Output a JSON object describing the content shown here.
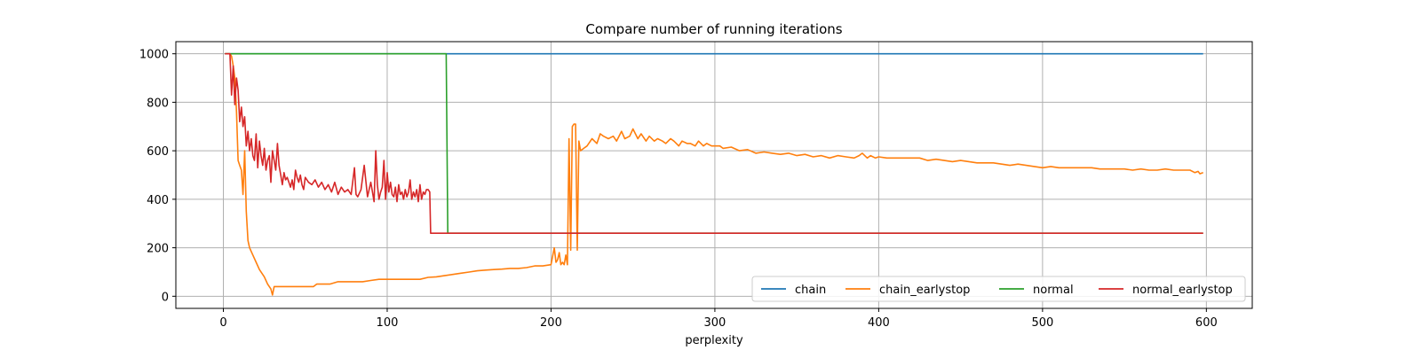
{
  "chart_data": {
    "type": "line",
    "title": "Compare number of running iterations",
    "xlabel": "perplexity",
    "ylabel": "",
    "xlim": [
      -29,
      628
    ],
    "ylim": [
      -50,
      1050
    ],
    "x_ticks": [
      0,
      100,
      200,
      300,
      400,
      500,
      600
    ],
    "y_ticks": [
      0,
      200,
      400,
      600,
      800,
      1000
    ],
    "grid": true,
    "legend_position": "lower-right",
    "legend_columns": 4,
    "series": [
      {
        "name": "chain",
        "color": "#1f77b4",
        "x": [
          1,
          598
        ],
        "y": [
          1000,
          1000
        ]
      },
      {
        "name": "chain_earlystop",
        "color": "#ff7f0e",
        "x": [
          1,
          4,
          5,
          6,
          7,
          8,
          9,
          10,
          11,
          12,
          13,
          14,
          15,
          16,
          18,
          20,
          22,
          25,
          27,
          29,
          30,
          31,
          35,
          40,
          45,
          50,
          55,
          57,
          60,
          65,
          70,
          75,
          80,
          85,
          90,
          95,
          100,
          110,
          120,
          125,
          130,
          135,
          140,
          145,
          150,
          155,
          160,
          165,
          170,
          175,
          180,
          185,
          190,
          195,
          200,
          202,
          203,
          204,
          205,
          206,
          207,
          208,
          209,
          210,
          211,
          212,
          213,
          214,
          215,
          216,
          217,
          218,
          220,
          222,
          225,
          228,
          230,
          232,
          235,
          238,
          240,
          243,
          245,
          248,
          250,
          253,
          255,
          258,
          260,
          263,
          265,
          268,
          270,
          273,
          275,
          278,
          280,
          283,
          285,
          288,
          290,
          293,
          295,
          298,
          300,
          303,
          305,
          310,
          315,
          320,
          325,
          330,
          335,
          340,
          345,
          350,
          355,
          360,
          365,
          370,
          375,
          380,
          385,
          388,
          390,
          393,
          395,
          398,
          400,
          405,
          410,
          415,
          420,
          425,
          430,
          435,
          440,
          445,
          450,
          455,
          460,
          465,
          470,
          475,
          480,
          485,
          490,
          495,
          500,
          505,
          510,
          515,
          520,
          525,
          530,
          535,
          540,
          545,
          550,
          555,
          560,
          565,
          570,
          575,
          580,
          585,
          590,
          593,
          595,
          596,
          598
        ],
        "y": [
          1000,
          1000,
          990,
          950,
          900,
          760,
          560,
          540,
          520,
          420,
          600,
          350,
          230,
          200,
          170,
          140,
          110,
          80,
          50,
          30,
          5,
          40,
          40,
          40,
          40,
          40,
          40,
          50,
          50,
          50,
          60,
          60,
          60,
          60,
          65,
          70,
          70,
          70,
          70,
          78,
          80,
          85,
          90,
          95,
          100,
          105,
          108,
          110,
          112,
          115,
          115,
          118,
          125,
          125,
          130,
          200,
          140,
          150,
          180,
          130,
          140,
          130,
          170,
          130,
          650,
          190,
          700,
          710,
          710,
          190,
          640,
          600,
          610,
          620,
          650,
          630,
          670,
          660,
          650,
          660,
          640,
          680,
          650,
          660,
          690,
          650,
          670,
          640,
          660,
          640,
          650,
          640,
          630,
          650,
          640,
          620,
          640,
          630,
          630,
          620,
          640,
          620,
          630,
          620,
          620,
          620,
          610,
          615,
          600,
          605,
          590,
          595,
          590,
          585,
          590,
          580,
          585,
          575,
          580,
          570,
          580,
          575,
          570,
          580,
          590,
          570,
          580,
          570,
          575,
          570,
          570,
          570,
          570,
          570,
          560,
          565,
          560,
          555,
          560,
          555,
          550,
          550,
          550,
          545,
          540,
          545,
          540,
          535,
          530,
          535,
          530,
          530,
          530,
          530,
          530,
          525,
          525,
          525,
          525,
          520,
          525,
          520,
          520,
          525,
          520,
          520,
          520,
          510,
          515,
          505,
          510
        ],
        "note_unused": ""
      },
      {
        "name": "normal",
        "color": "#2ca02c",
        "x": [
          1,
          136,
          137,
          598
        ],
        "y": [
          1000,
          1000,
          260,
          260
        ]
      },
      {
        "name": "normal_earlystop",
        "color": "#d62728",
        "x": [
          1,
          3,
          4,
          5,
          6,
          7,
          8,
          9,
          10,
          11,
          12,
          13,
          14,
          15,
          16,
          17,
          18,
          19,
          20,
          21,
          22,
          23,
          24,
          25,
          26,
          27,
          28,
          29,
          30,
          31,
          32,
          33,
          34,
          35,
          36,
          37,
          38,
          39,
          40,
          41,
          42,
          43,
          44,
          45,
          46,
          47,
          48,
          49,
          50,
          52,
          54,
          56,
          58,
          60,
          62,
          64,
          66,
          68,
          70,
          72,
          74,
          76,
          78,
          80,
          81,
          82,
          84,
          86,
          88,
          90,
          91,
          92,
          93,
          94,
          95,
          96,
          97,
          98,
          99,
          100,
          101,
          102,
          103,
          104,
          105,
          106,
          107,
          108,
          109,
          110,
          111,
          112,
          113,
          114,
          115,
          116,
          117,
          118,
          119,
          120,
          121,
          122,
          123,
          124,
          125,
          126,
          126.5,
          598
        ],
        "y": [
          1000,
          1000,
          1000,
          830,
          950,
          790,
          900,
          850,
          720,
          780,
          700,
          740,
          620,
          680,
          600,
          650,
          580,
          560,
          670,
          530,
          640,
          580,
          540,
          610,
          520,
          560,
          580,
          470,
          600,
          560,
          520,
          630,
          540,
          500,
          460,
          510,
          480,
          490,
          470,
          450,
          480,
          440,
          520,
          490,
          470,
          500,
          460,
          440,
          490,
          470,
          460,
          480,
          450,
          470,
          440,
          460,
          430,
          470,
          420,
          450,
          430,
          440,
          420,
          530,
          420,
          410,
          440,
          540,
          410,
          470,
          430,
          390,
          600,
          460,
          400,
          430,
          450,
          560,
          400,
          510,
          430,
          470,
          420,
          410,
          450,
          390,
          460,
          420,
          430,
          400,
          440,
          410,
          430,
          480,
          400,
          430,
          410,
          440,
          390,
          460,
          400,
          430,
          420,
          440,
          440,
          430,
          260,
          260
        ]
      }
    ]
  }
}
